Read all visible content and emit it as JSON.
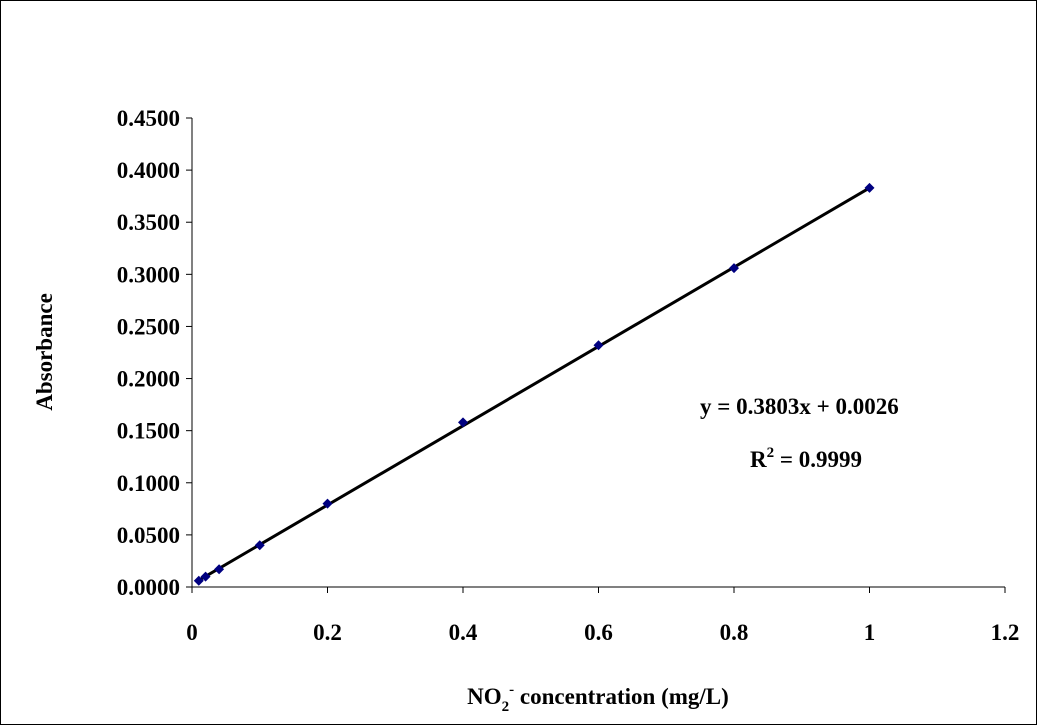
{
  "chart_data": {
    "type": "scatter",
    "xlabel": [
      "NO",
      "2",
      "-",
      " concentration (mg/L)"
    ],
    "ylabel": "Absorbance",
    "annotation": {
      "equation": "y = 0.3803x + 0.0026",
      "r2": [
        "R",
        "2",
        " = 0.9999"
      ]
    },
    "trendline": {
      "slope": 0.3803,
      "intercept": 0.0026,
      "color": "#000000"
    },
    "series": [
      {
        "name": "Absorbance",
        "color": "#000080",
        "x": [
          0.01,
          0.02,
          0.04,
          0.1,
          0.2,
          0.4,
          0.6,
          0.8,
          1.0
        ],
        "values": [
          0.006,
          0.01,
          0.017,
          0.04,
          0.08,
          0.158,
          0.232,
          0.306,
          0.383
        ]
      }
    ],
    "xlim": [
      0,
      1.2
    ],
    "xticks": [
      0,
      0.2,
      0.4,
      0.6,
      0.8,
      1,
      1.2
    ],
    "ylim": [
      0,
      0.45
    ],
    "yticks": [
      {
        "value": 0,
        "label": "0.0000"
      },
      {
        "value": 0.05,
        "label": "0.0500"
      },
      {
        "value": 0.1,
        "label": "0.1000"
      },
      {
        "value": 0.15,
        "label": "0.1500"
      },
      {
        "value": 0.2,
        "label": "0.2000"
      },
      {
        "value": 0.25,
        "label": "0.2500"
      },
      {
        "value": 0.3,
        "label": "0.3000"
      },
      {
        "value": 0.35,
        "label": "0.3500"
      },
      {
        "value": 0.4,
        "label": "0.4000"
      },
      {
        "value": 0.45,
        "label": "0.4500"
      }
    ],
    "grid": false
  }
}
